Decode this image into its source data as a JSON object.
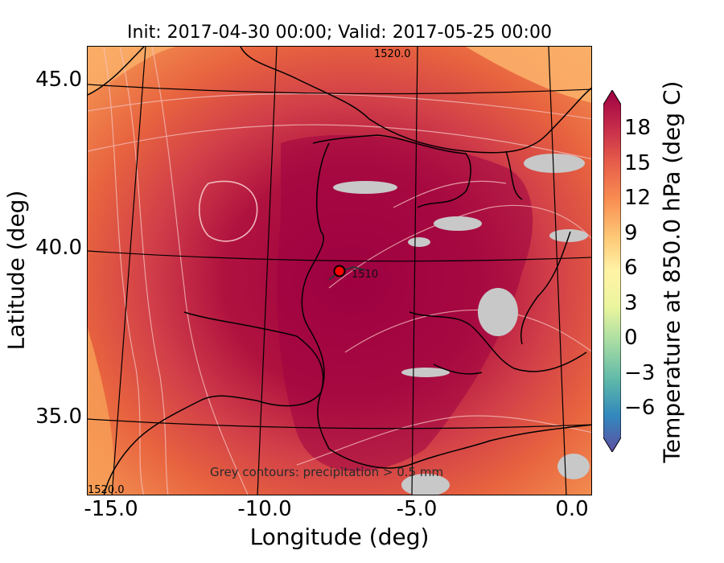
{
  "title": "Init: 2017-04-30 00:00; Valid: 2017-05-25 00:00",
  "axes": {
    "xlabel": "Longitude (deg)",
    "ylabel": "Latitude (deg)",
    "xticks": [
      "-15.0",
      "-10.0",
      "-5.0",
      "0.0"
    ],
    "yticks": [
      "45.0",
      "40.0",
      "35.0"
    ]
  },
  "colorbar": {
    "label": "Temperature at 850.0 hPa (deg C)",
    "ticks": [
      "18",
      "15",
      "12",
      "9",
      "6",
      "3",
      "0",
      "−3",
      "−6"
    ],
    "colors": [
      "#9e0142",
      "#d53e4f",
      "#f46d43",
      "#fdae61",
      "#fee08b",
      "#ffffbf",
      "#e6f598",
      "#abdda4",
      "#66c2a5",
      "#3288bd",
      "#5e4fa2"
    ]
  },
  "annotations": {
    "precip_note": "Grey contours: precipitation > 0.5 mm",
    "contour_label_top": "1520.0",
    "contour_label_bottom": "1520.0",
    "contour_label_center": "1510"
  },
  "marker": {
    "color": "#ff0000"
  }
}
